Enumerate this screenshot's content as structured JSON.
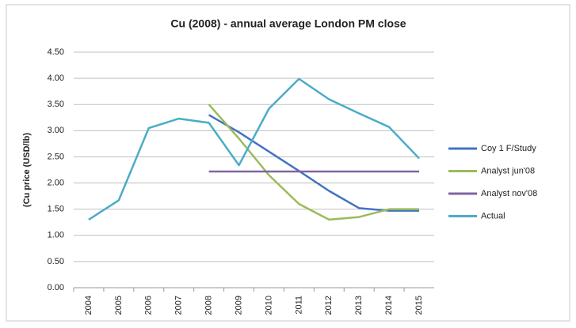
{
  "chart_data": {
    "type": "line",
    "title": "Cu (2008) - annual average London PM close",
    "y_label": "(Cu price (USD/lb)",
    "categories": [
      "2004",
      "2005",
      "2006",
      "2007",
      "2008",
      "2009",
      "2010",
      "2011",
      "2012",
      "2013",
      "2014",
      "2015"
    ],
    "series": [
      {
        "name": "Coy 1 F/Study",
        "color": "#4472c4",
        "values": [
          null,
          null,
          null,
          null,
          3.3,
          2.97,
          2.6,
          2.23,
          1.85,
          1.52,
          1.47,
          1.47
        ]
      },
      {
        "name": "Analyst jun'08",
        "color": "#9bbb59",
        "values": [
          null,
          null,
          null,
          null,
          3.5,
          2.85,
          2.15,
          1.6,
          1.3,
          1.35,
          1.5,
          1.5
        ]
      },
      {
        "name": "Analyst nov'08",
        "color": "#8064a2",
        "values": [
          null,
          null,
          null,
          null,
          2.22,
          2.22,
          2.22,
          2.22,
          2.22,
          2.22,
          2.22,
          2.22
        ]
      },
      {
        "name": "Actual",
        "color": "#4bacc6",
        "values": [
          1.3,
          1.67,
          3.05,
          3.23,
          3.15,
          2.34,
          3.42,
          3.99,
          3.6,
          3.33,
          3.07,
          2.47
        ]
      }
    ],
    "ylim": [
      0,
      4.5
    ],
    "yticks": [
      {
        "value": 0,
        "label": "0.00"
      },
      {
        "value": 0.5,
        "label": "0.50"
      },
      {
        "value": 1,
        "label": "1.00"
      },
      {
        "value": 1.5,
        "label": "1.50"
      },
      {
        "value": 2,
        "label": "2.00"
      },
      {
        "value": 2.5,
        "label": "2.50"
      },
      {
        "value": 3,
        "label": "3.00"
      },
      {
        "value": 3.5,
        "label": "3.50"
      },
      {
        "value": 4,
        "label": "4.00"
      },
      {
        "value": 4.5,
        "label": "4.50"
      }
    ],
    "grid": true,
    "legend": "right"
  }
}
